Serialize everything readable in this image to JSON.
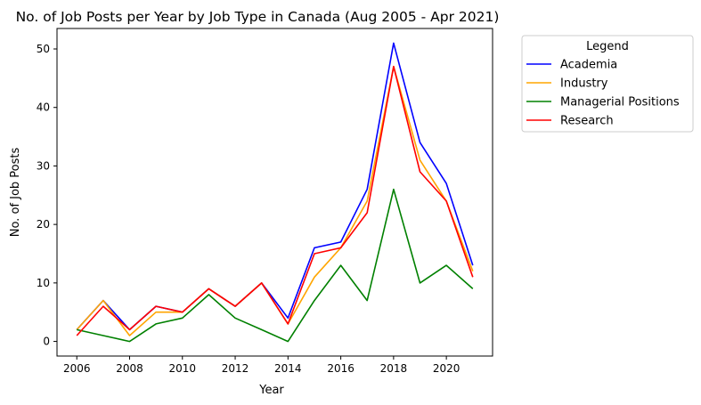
{
  "chart_data": {
    "type": "line",
    "title": "No. of Job Posts per Year by Job Type in Canada (Aug 2005 - Apr 2021)",
    "xlabel": "Year",
    "ylabel": "No. of Job Posts",
    "xlim": [
      2005.25,
      2021.75
    ],
    "ylim": [
      -2.5,
      53.5
    ],
    "xticks": [
      2006,
      2008,
      2010,
      2012,
      2014,
      2016,
      2018,
      2020
    ],
    "yticks": [
      0,
      10,
      20,
      30,
      40,
      50
    ],
    "grid": false,
    "legend": {
      "title": "Legend",
      "placement": "outside-top-right"
    },
    "x": [
      2006,
      2007,
      2008,
      2009,
      2010,
      2011,
      2012,
      2013,
      2014,
      2015,
      2016,
      2017,
      2018,
      2019,
      2020,
      2021
    ],
    "series": [
      {
        "name": "Academia",
        "color": "#0000ff",
        "values": [
          2,
          7,
          2,
          6,
          5,
          9,
          6,
          10,
          4,
          16,
          17,
          26,
          51,
          34,
          27,
          13
        ]
      },
      {
        "name": "Industry",
        "color": "#ffa500",
        "values": [
          2,
          7,
          1,
          5,
          5,
          9,
          6,
          10,
          3,
          11,
          16,
          24,
          47,
          31,
          24,
          12
        ]
      },
      {
        "name": "Managerial Positions",
        "color": "#008000",
        "values": [
          2,
          1,
          0,
          3,
          4,
          8,
          4,
          2,
          0,
          7,
          13,
          7,
          26,
          10,
          13,
          9
        ]
      },
      {
        "name": "Research",
        "color": "#ff0000",
        "values": [
          1,
          6,
          2,
          6,
          5,
          9,
          6,
          10,
          3,
          15,
          16,
          22,
          47,
          29,
          24,
          11
        ]
      }
    ]
  }
}
